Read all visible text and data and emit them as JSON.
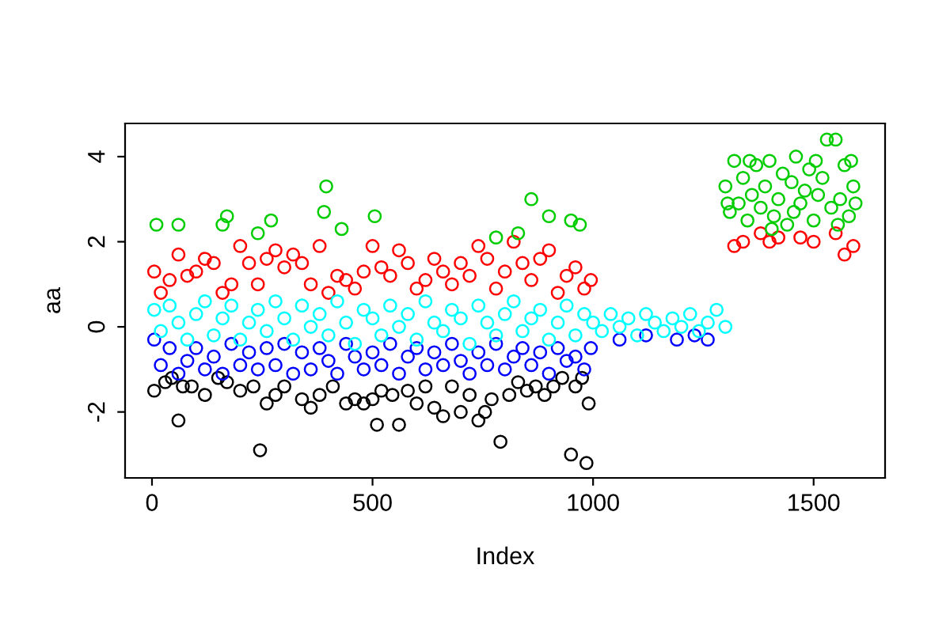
{
  "chart_data": {
    "type": "scatter",
    "xlabel": "Index",
    "ylabel": "aa",
    "xlim": [
      -61,
      1662
    ],
    "ylim": [
      -3.55,
      4.78
    ],
    "xticks": [
      0,
      500,
      1000,
      1500
    ],
    "yticks": [
      -2,
      0,
      2,
      4
    ],
    "marker": "circle",
    "grid": false,
    "legend": false,
    "series": [
      {
        "color": "#000000",
        "x": [
          5,
          30,
          45,
          60,
          70,
          90,
          120,
          150,
          170,
          200,
          230,
          245,
          260,
          280,
          300,
          340,
          360,
          380,
          410,
          440,
          460,
          480,
          500,
          510,
          520,
          545,
          560,
          580,
          600,
          620,
          640,
          660,
          680,
          700,
          720,
          740,
          755,
          770,
          790,
          810,
          830,
          850,
          870,
          890,
          910,
          930,
          950,
          960,
          975,
          985,
          990
        ],
        "values": [
          -1.5,
          -1.3,
          -1.2,
          -2.2,
          -1.4,
          -1.4,
          -1.6,
          -1.2,
          -1.3,
          -1.5,
          -1.4,
          -2.9,
          -1.8,
          -1.6,
          -1.4,
          -1.7,
          -1.9,
          -1.6,
          -1.4,
          -1.8,
          -1.7,
          -1.8,
          -1.7,
          -2.3,
          -1.5,
          -1.6,
          -2.3,
          -1.5,
          -1.8,
          -1.4,
          -1.9,
          -2.1,
          -1.4,
          -2.0,
          -1.6,
          -2.2,
          -2.0,
          -1.7,
          -2.7,
          -1.6,
          -1.3,
          -1.5,
          -1.4,
          -1.6,
          -1.4,
          -1.2,
          -3.0,
          -1.4,
          -1.2,
          -3.2,
          -1.8
        ]
      },
      {
        "color": "#ff0000",
        "x": [
          5,
          20,
          40,
          60,
          80,
          100,
          120,
          140,
          160,
          180,
          200,
          220,
          240,
          260,
          280,
          300,
          320,
          340,
          360,
          380,
          400,
          420,
          440,
          460,
          480,
          500,
          520,
          540,
          560,
          580,
          600,
          620,
          640,
          660,
          680,
          700,
          720,
          740,
          760,
          780,
          800,
          820,
          840,
          860,
          880,
          900,
          920,
          940,
          960,
          980,
          995,
          1320,
          1340,
          1380,
          1400,
          1420,
          1470,
          1500,
          1550,
          1570,
          1590
        ],
        "values": [
          1.3,
          0.8,
          1.1,
          1.7,
          1.2,
          1.3,
          1.6,
          1.5,
          0.8,
          1.0,
          1.9,
          1.5,
          1.0,
          1.6,
          1.8,
          1.4,
          1.7,
          1.5,
          1.0,
          1.9,
          0.8,
          1.2,
          1.1,
          0.9,
          1.3,
          1.9,
          1.4,
          1.2,
          1.8,
          1.5,
          0.9,
          1.1,
          1.6,
          1.3,
          1.0,
          1.5,
          1.2,
          1.9,
          1.6,
          0.9,
          1.3,
          2.0,
          1.5,
          1.1,
          1.6,
          1.8,
          0.8,
          1.2,
          1.4,
          0.9,
          1.1,
          1.9,
          2.0,
          2.2,
          2.0,
          2.1,
          2.1,
          2.0,
          2.2,
          1.7,
          1.9
        ]
      },
      {
        "color": "#00cd00",
        "x": [
          10,
          60,
          160,
          170,
          240,
          270,
          390,
          395,
          430,
          505,
          780,
          830,
          860,
          900,
          950,
          970,
          1300,
          1305,
          1310,
          1320,
          1330,
          1340,
          1350,
          1355,
          1360,
          1370,
          1380,
          1390,
          1400,
          1405,
          1410,
          1420,
          1430,
          1440,
          1450,
          1455,
          1460,
          1470,
          1480,
          1490,
          1500,
          1505,
          1510,
          1520,
          1530,
          1540,
          1550,
          1555,
          1560,
          1570,
          1580,
          1585,
          1590,
          1595
        ],
        "values": [
          2.4,
          2.4,
          2.4,
          2.6,
          2.2,
          2.5,
          2.7,
          3.3,
          2.3,
          2.6,
          2.1,
          2.2,
          3.0,
          2.6,
          2.5,
          2.4,
          3.3,
          2.9,
          2.7,
          3.9,
          2.9,
          3.5,
          2.5,
          3.9,
          3.1,
          3.8,
          2.8,
          3.3,
          3.9,
          2.3,
          2.6,
          3.0,
          3.6,
          2.4,
          3.4,
          2.7,
          4.0,
          2.9,
          3.2,
          3.7,
          2.5,
          3.9,
          3.1,
          3.5,
          4.4,
          2.8,
          4.4,
          2.4,
          3.0,
          3.8,
          2.6,
          3.9,
          3.3,
          2.9
        ]
      },
      {
        "color": "#0000ff",
        "x": [
          5,
          20,
          40,
          60,
          80,
          100,
          120,
          140,
          160,
          180,
          200,
          220,
          240,
          260,
          280,
          300,
          320,
          340,
          360,
          380,
          400,
          420,
          440,
          460,
          480,
          500,
          520,
          540,
          560,
          580,
          600,
          620,
          640,
          660,
          680,
          700,
          720,
          740,
          760,
          780,
          800,
          820,
          840,
          860,
          880,
          900,
          920,
          940,
          960,
          980,
          995,
          1060,
          1120,
          1190,
          1230,
          1260
        ],
        "values": [
          -0.3,
          -0.9,
          -0.5,
          -1.1,
          -0.8,
          -0.5,
          -1.0,
          -0.7,
          -1.1,
          -0.4,
          -0.9,
          -0.6,
          -1.0,
          -0.5,
          -0.9,
          -0.4,
          -1.1,
          -0.6,
          -1.0,
          -0.5,
          -0.8,
          -1.1,
          -0.4,
          -0.7,
          -1.0,
          -0.6,
          -0.9,
          -0.4,
          -1.1,
          -0.7,
          -0.5,
          -1.0,
          -0.6,
          -0.9,
          -0.4,
          -0.8,
          -1.1,
          -0.6,
          -0.9,
          -0.4,
          -1.0,
          -0.7,
          -0.5,
          -0.9,
          -0.6,
          -1.1,
          -0.5,
          -0.8,
          -0.7,
          -1.0,
          -0.5,
          -0.3,
          -0.2,
          -0.3,
          -0.2,
          -0.3
        ]
      },
      {
        "color": "#00ffff",
        "x": [
          5,
          20,
          40,
          60,
          80,
          100,
          120,
          140,
          160,
          180,
          200,
          220,
          240,
          260,
          280,
          300,
          320,
          340,
          360,
          380,
          400,
          420,
          440,
          460,
          480,
          500,
          520,
          540,
          560,
          580,
          600,
          620,
          640,
          660,
          680,
          700,
          720,
          740,
          760,
          780,
          800,
          820,
          840,
          860,
          880,
          900,
          920,
          940,
          960,
          980,
          1000,
          1020,
          1040,
          1060,
          1080,
          1100,
          1120,
          1140,
          1160,
          1180,
          1200,
          1220,
          1240,
          1260,
          1280,
          1300
        ],
        "values": [
          0.4,
          -0.1,
          0.5,
          0.1,
          -0.3,
          0.3,
          0.6,
          -0.2,
          0.2,
          0.5,
          -0.3,
          0.1,
          0.4,
          -0.1,
          0.6,
          0.2,
          -0.3,
          0.5,
          0.0,
          0.3,
          -0.2,
          0.6,
          0.1,
          -0.4,
          0.4,
          0.2,
          -0.2,
          0.5,
          0.0,
          0.3,
          -0.3,
          0.6,
          0.1,
          -0.1,
          0.4,
          0.2,
          -0.4,
          0.5,
          0.1,
          -0.2,
          0.3,
          0.6,
          -0.1,
          0.2,
          0.4,
          -0.3,
          0.1,
          0.5,
          -0.2,
          0.3,
          0.1,
          -0.1,
          0.3,
          0.0,
          0.2,
          -0.2,
          0.3,
          0.1,
          -0.1,
          0.2,
          0.0,
          0.3,
          -0.1,
          0.1,
          0.4,
          0.0
        ]
      }
    ]
  }
}
